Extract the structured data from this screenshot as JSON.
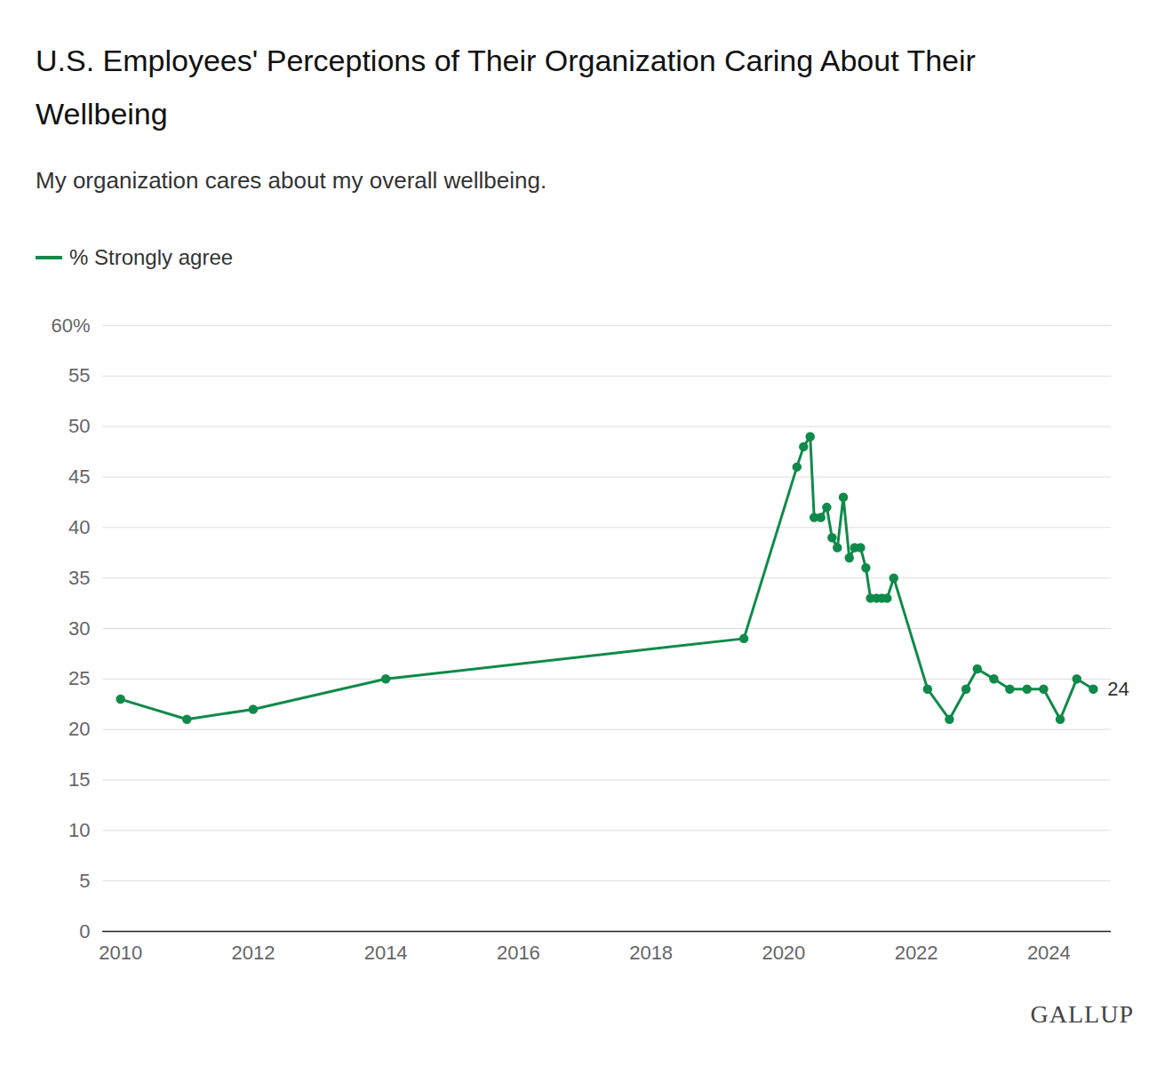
{
  "chart_data": {
    "type": "line",
    "title": "U.S. Employees' Perceptions of Their Organization Caring About Their Wellbeing",
    "subtitle": "My organization cares about my overall wellbeing.",
    "source": "GALLUP",
    "x": [
      2010,
      2011,
      2012,
      2014,
      2019.4,
      2020.2,
      2020.3,
      2020.4,
      2020.46,
      2020.56,
      2020.65,
      2020.73,
      2020.81,
      2020.9,
      2020.99,
      2021.07,
      2021.16,
      2021.24,
      2021.31,
      2021.4,
      2021.48,
      2021.56,
      2021.66,
      2022.17,
      2022.5,
      2022.75,
      2022.92,
      2023.17,
      2023.41,
      2023.67,
      2023.92,
      2024.17,
      2024.42,
      2024.67
    ],
    "series": [
      {
        "name": "% Strongly agree",
        "color": "#108a4a",
        "marker": "circle",
        "line_style": "solid",
        "values": [
          23,
          21,
          22,
          25,
          29,
          46,
          48,
          49,
          41,
          41,
          42,
          39,
          38,
          43,
          37,
          38,
          38,
          36,
          33,
          33,
          33,
          33,
          35,
          24,
          21,
          24,
          26,
          25,
          24,
          24,
          24,
          21,
          25,
          24
        ]
      }
    ],
    "xlim": [
      2009.73,
      2024.94
    ],
    "xticks": [
      2010,
      2012,
      2014,
      2016,
      2018,
      2020,
      2022,
      2024
    ],
    "ylim": [
      0,
      60
    ],
    "yticks": [
      0,
      5,
      10,
      15,
      20,
      25,
      30,
      35,
      40,
      45,
      50,
      55,
      {
        "value": 60,
        "label": "60%"
      }
    ],
    "grid": true,
    "legend": "top-left",
    "annotations": [
      {
        "x": 2024.67,
        "y": 24,
        "text": "24"
      }
    ]
  }
}
